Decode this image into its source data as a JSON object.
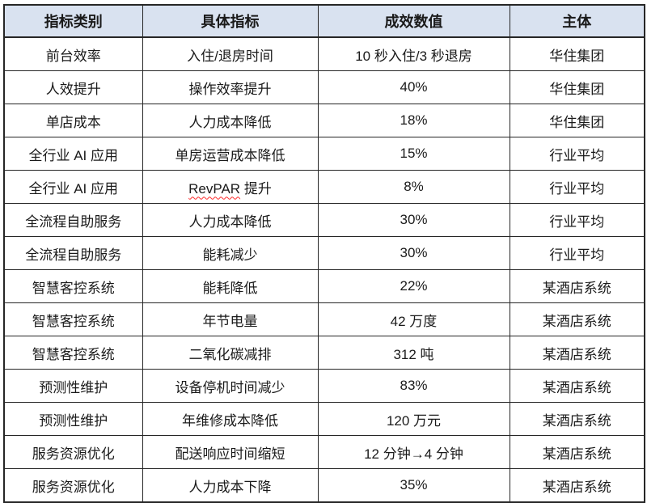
{
  "table": {
    "columns": [
      "指标类别",
      "具体指标",
      "成效数值",
      "主体"
    ],
    "rows": [
      {
        "category": "前台效率",
        "indicator": "入住/退房时间",
        "value": "10 秒入住/3 秒退房",
        "subject": "华住集团"
      },
      {
        "category": "人效提升",
        "indicator": "操作效率提升",
        "value": "40%",
        "subject": "华住集团"
      },
      {
        "category": "单店成本",
        "indicator": "人力成本降低",
        "value": "18%",
        "subject": "华住集团"
      },
      {
        "category": "全行业 AI 应用",
        "indicator": "单房运营成本降低",
        "value": "15%",
        "subject": "行业平均"
      },
      {
        "category": "全行业 AI 应用",
        "indicator": "RevPAR 提升",
        "underline_word": "RevPAR",
        "value": "8%",
        "subject": "行业平均"
      },
      {
        "category": "全流程自助服务",
        "indicator": "人力成本降低",
        "value": "30%",
        "subject": "行业平均"
      },
      {
        "category": "全流程自助服务",
        "indicator": "能耗减少",
        "value": "30%",
        "subject": "行业平均"
      },
      {
        "category": "智慧客控系统",
        "indicator": "能耗降低",
        "value": "22%",
        "subject": "某酒店系统"
      },
      {
        "category": "智慧客控系统",
        "indicator": "年节电量",
        "value": "42 万度",
        "subject": "某酒店系统"
      },
      {
        "category": "智慧客控系统",
        "indicator": "二氧化碳减排",
        "value": "312 吨",
        "subject": "某酒店系统"
      },
      {
        "category": "预测性维护",
        "indicator": "设备停机时间减少",
        "value": "83%",
        "subject": "某酒店系统"
      },
      {
        "category": "预测性维护",
        "indicator": "年维修成本降低",
        "value": "120 万元",
        "subject": "某酒店系统"
      },
      {
        "category": "服务资源优化",
        "indicator": "配送响应时间缩短",
        "value": "12 分钟→4 分钟",
        "subject": "某酒店系统"
      },
      {
        "category": "服务资源优化",
        "indicator": "人力成本下降",
        "value": "35%",
        "subject": "某酒店系统"
      }
    ],
    "colors": {
      "header_bg": "#D9E2F0",
      "border": "#262626",
      "spellcheck_underline": "#FF2A2A"
    }
  }
}
